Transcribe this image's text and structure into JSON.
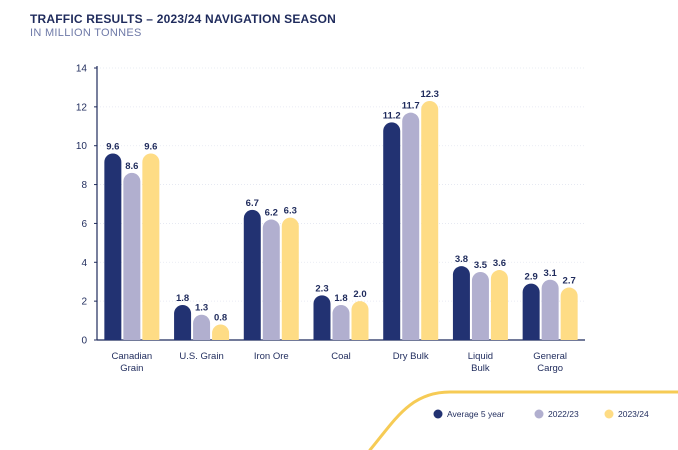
{
  "header": {
    "title": "TRAFFIC RESULTS – 2023/24 NAVIGATION SEASON",
    "subtitle": "IN MILLION TONNES"
  },
  "colors": {
    "series_avg": "#223272",
    "series_2223": "#b1afcf",
    "series_2324": "#fedc85",
    "accent_curve": "#f5c542",
    "axis": "#1f2b5c",
    "grid": "#e3e6f0"
  },
  "chart_data": {
    "type": "bar",
    "title": "TRAFFIC RESULTS – 2023/24 NAVIGATION SEASON",
    "subtitle": "IN MILLION TONNES",
    "xlabel": "",
    "ylabel": "",
    "ylim": [
      0,
      14
    ],
    "yticks": [
      0,
      2,
      4,
      6,
      8,
      10,
      12,
      14
    ],
    "grid": true,
    "legend_position": "bottom-right",
    "categories": [
      [
        "Canadian",
        "Grain"
      ],
      [
        "U.S. Grain"
      ],
      [
        "Iron Ore"
      ],
      [
        "Coal"
      ],
      [
        "Dry Bulk"
      ],
      [
        "Liquid",
        "Bulk"
      ],
      [
        "General",
        "Cargo"
      ]
    ],
    "series": [
      {
        "name": "Average 5 year",
        "color": "#223272",
        "values": [
          9.6,
          1.8,
          6.7,
          2.3,
          11.2,
          3.8,
          2.9
        ],
        "labels": [
          "9.6",
          "1.8",
          "6.7",
          "2.3",
          "11.2",
          "3.8",
          "2.9"
        ]
      },
      {
        "name": "2022/23",
        "color": "#b1afcf",
        "values": [
          8.6,
          1.3,
          6.2,
          1.8,
          11.7,
          3.5,
          3.1
        ],
        "labels": [
          "8.6",
          "1.3",
          "6.2",
          "1.8",
          "11.7",
          "3.5",
          "3.1"
        ]
      },
      {
        "name": "2023/24",
        "color": "#fedc85",
        "values": [
          9.6,
          0.8,
          6.3,
          2.0,
          12.3,
          3.6,
          2.7
        ],
        "labels": [
          "9.6",
          "0.8",
          "6.3",
          "2.0",
          "12.3",
          "3.6",
          "2.7"
        ]
      }
    ]
  }
}
